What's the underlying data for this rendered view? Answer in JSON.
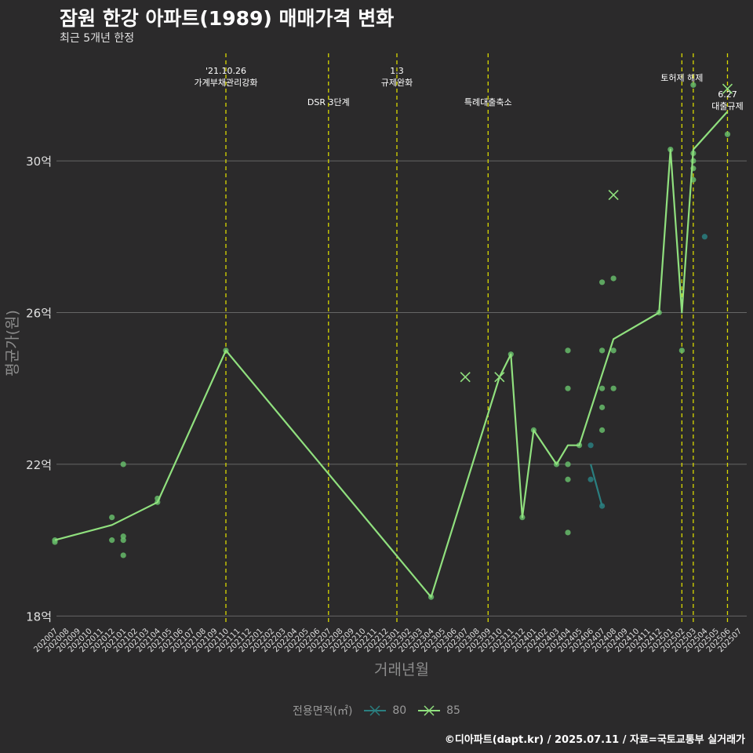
{
  "title": "잠원 한강 아파트(1989) 매매가격 변화",
  "subtitle": "최근 5개년 한정",
  "caption": "©디아파트(dapt.kr) / 2025.07.11 / 자료=국토교통부 실거래가",
  "colors": {
    "background": "#2b2a2b",
    "s80": "#2a7f80",
    "s85": "#90e07e",
    "point": "#66bb6a",
    "vline": "#d8d800",
    "grid": "#666666"
  },
  "chart_data": {
    "type": "line",
    "xlabel": "거래년월",
    "ylabel": "평균가(원)",
    "ylim": [
      17.8,
      33
    ],
    "yticks": [
      {
        "v": 18,
        "label": "18억"
      },
      {
        "v": 22,
        "label": "22억"
      },
      {
        "v": 26,
        "label": "26억"
      },
      {
        "v": 30,
        "label": "30억"
      }
    ],
    "categories": [
      "202007",
      "202008",
      "202009",
      "202010",
      "202011",
      "202012",
      "202101",
      "202102",
      "202103",
      "202104",
      "202105",
      "202106",
      "202107",
      "202108",
      "202109",
      "202110",
      "202111",
      "202112",
      "202201",
      "202202",
      "202203",
      "202204",
      "202205",
      "202206",
      "202207",
      "202208",
      "202209",
      "202210",
      "202211",
      "202212",
      "202301",
      "202302",
      "202303",
      "202304",
      "202305",
      "202306",
      "202307",
      "202308",
      "202309",
      "202310",
      "202311",
      "202312",
      "202401",
      "202402",
      "202403",
      "202404",
      "202405",
      "202406",
      "202407",
      "202408",
      "202409",
      "202410",
      "202411",
      "202412",
      "202501",
      "202502",
      "202503",
      "202504",
      "202505",
      "202506",
      "202507"
    ],
    "events": [
      {
        "x": "202110",
        "label": "'21.10.26\n가계부채관리강화",
        "row": 1
      },
      {
        "x": "202207",
        "label": "DSR 3단계",
        "row": 2
      },
      {
        "x": "202301",
        "label": "1.3\n규제완화",
        "row": 1
      },
      {
        "x": "202309",
        "label": "특례대출축소",
        "row": 2
      },
      {
        "x": "202502",
        "label": "토허제 해제",
        "row": 1
      },
      {
        "x": "202503",
        "label": "",
        "row": 1
      },
      {
        "x": "202506",
        "label": "6.27\n대출규제",
        "row": 3
      }
    ],
    "series": [
      {
        "name": "80",
        "color": "#2a7f80",
        "line": [
          [
            "202406",
            22.0
          ],
          [
            "202407",
            20.9
          ]
        ],
        "points": [
          [
            "202406",
            22.5
          ],
          [
            "202406",
            21.6
          ],
          [
            "202407",
            20.9
          ],
          [
            "202504",
            28.0
          ]
        ],
        "marks": []
      },
      {
        "name": "85",
        "color": "#90e07e",
        "line": [
          [
            "202007",
            20.0
          ],
          [
            "202012",
            20.4
          ],
          [
            "202104",
            21.0
          ],
          [
            "202110",
            25.0
          ],
          [
            "202304",
            18.5
          ],
          [
            "202310",
            24.3
          ],
          [
            "202311",
            24.9
          ],
          [
            "202312",
            20.6
          ],
          [
            "202401",
            22.9
          ],
          [
            "202403",
            22.0
          ],
          [
            "202404",
            22.5
          ],
          [
            "202405",
            22.5
          ],
          [
            "202408",
            25.3
          ],
          [
            "202412",
            26.0
          ],
          [
            "202501",
            30.3
          ],
          [
            "202502",
            26.0
          ],
          [
            "202503",
            30.3
          ],
          [
            "202506",
            31.3
          ]
        ],
        "points": [
          [
            "202007",
            20.0
          ],
          [
            "202007",
            19.95
          ],
          [
            "202012",
            20.6
          ],
          [
            "202012",
            20.0
          ],
          [
            "202101",
            22.0
          ],
          [
            "202101",
            20.1
          ],
          [
            "202101",
            20.0
          ],
          [
            "202101",
            19.6
          ],
          [
            "202104",
            21.1
          ],
          [
            "202104",
            21.0
          ],
          [
            "202110",
            25.0
          ],
          [
            "202304",
            18.5
          ],
          [
            "202311",
            24.9
          ],
          [
            "202312",
            20.6
          ],
          [
            "202401",
            22.9
          ],
          [
            "202403",
            22.0
          ],
          [
            "202404",
            25.0
          ],
          [
            "202404",
            24.0
          ],
          [
            "202404",
            22.0
          ],
          [
            "202404",
            21.6
          ],
          [
            "202404",
            20.2
          ],
          [
            "202405",
            22.5
          ],
          [
            "202407",
            26.8
          ],
          [
            "202407",
            25.0
          ],
          [
            "202407",
            24.0
          ],
          [
            "202407",
            23.5
          ],
          [
            "202407",
            22.9
          ],
          [
            "202408",
            26.9
          ],
          [
            "202408",
            25.0
          ],
          [
            "202408",
            24.0
          ],
          [
            "202412",
            26.0
          ],
          [
            "202501",
            30.3
          ],
          [
            "202502",
            25.0
          ],
          [
            "202503",
            32.0
          ],
          [
            "202503",
            30.2
          ],
          [
            "202503",
            30.0
          ],
          [
            "202503",
            29.8
          ],
          [
            "202503",
            29.5
          ],
          [
            "202506",
            30.7
          ]
        ],
        "marks": [
          [
            "202307",
            24.3
          ],
          [
            "202310",
            24.3
          ],
          [
            "202408",
            29.1
          ],
          [
            "202506",
            31.9
          ]
        ]
      }
    ]
  }
}
